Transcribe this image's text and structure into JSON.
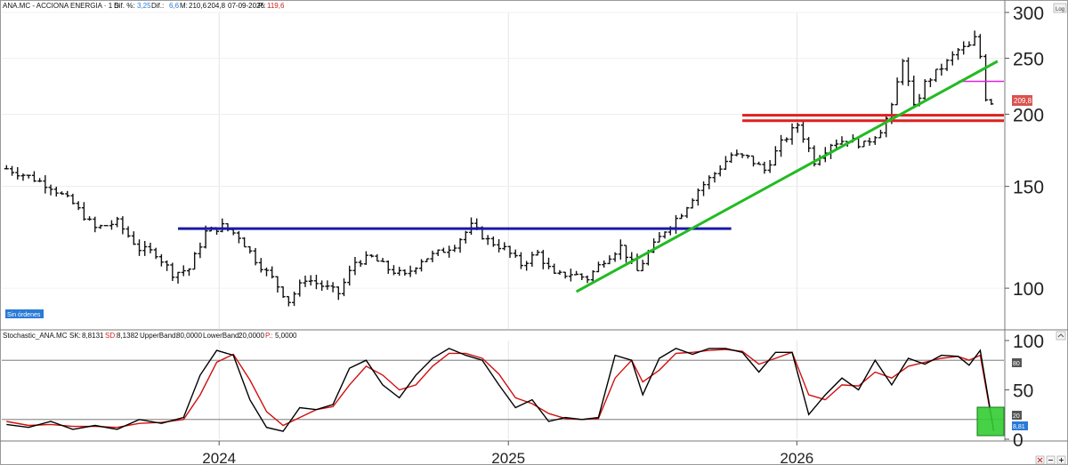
{
  "price_panel": {
    "header": {
      "symbol": "ANA.MC - ACCIONA ENERGIA · 1 S",
      "dif_pct_label": "Dif. %:",
      "dif_pct_value": "3,25",
      "dif_label": "Dif.:",
      "dif_value": "6,6",
      "max_label": "M:",
      "max_value": "210,6",
      "min_value": "204,8",
      "date": "07-09-2026",
      "p_label": "P.:",
      "p_value": "119,6"
    },
    "last_price_badge": "209,8",
    "orders_badge": "Sin órdenes",
    "log_button": "Log",
    "colors": {
      "positive": "#2a7bd6",
      "negative": "#d21f1f",
      "badge": "#d9534f"
    }
  },
  "stoch_panel": {
    "header": {
      "name": "Stochastic_ANA.MC",
      "sk_label": "SK:",
      "sk_value": "8,8131",
      "sd_label": "SD:",
      "sd_value": "8,1382",
      "upper_label": "UpperBand:",
      "upper_value": "80,0000",
      "lower_label": "LowerBand:",
      "lower_value": "20,0000",
      "p_label": "P.:",
      "p_value": "5,0000"
    },
    "badges": {
      "upper": "80",
      "lower": "20",
      "current": "8,81"
    }
  },
  "chart_data": [
    {
      "type": "ohlc",
      "scale": "log",
      "ylim": [
        85,
        300
      ],
      "y_ticks": [
        100,
        150,
        200,
        250,
        300
      ],
      "x_ticks": [
        "2024",
        "2025",
        "2026"
      ],
      "xlim": [
        "2023-04-01",
        "2026-09-20"
      ],
      "grid": true,
      "close_series": [
        [
          "2023-04-07",
          161
        ],
        [
          "2023-05-05",
          156
        ],
        [
          "2023-06-02",
          150
        ],
        [
          "2023-06-30",
          140
        ],
        [
          "2023-07-28",
          127
        ],
        [
          "2023-08-25",
          130
        ],
        [
          "2023-09-22",
          117
        ],
        [
          "2023-10-13",
          115
        ],
        [
          "2023-11-03",
          106
        ],
        [
          "2023-11-24",
          108
        ],
        [
          "2023-12-15",
          125
        ],
        [
          "2024-01-05",
          128
        ],
        [
          "2024-01-26",
          123
        ],
        [
          "2024-02-16",
          112
        ],
        [
          "2024-03-08",
          104
        ],
        [
          "2024-03-29",
          95
        ],
        [
          "2024-04-19",
          104
        ],
        [
          "2024-05-10",
          101
        ],
        [
          "2024-05-31",
          98
        ],
        [
          "2024-06-21",
          111
        ],
        [
          "2024-07-12",
          113
        ],
        [
          "2024-08-02",
          108
        ],
        [
          "2024-08-23",
          105
        ],
        [
          "2024-09-13",
          112
        ],
        [
          "2024-10-04",
          115
        ],
        [
          "2024-10-25",
          119
        ],
        [
          "2024-11-15",
          128
        ],
        [
          "2024-12-06",
          121
        ],
        [
          "2024-12-27",
          117
        ],
        [
          "2025-01-17",
          110
        ],
        [
          "2025-02-07",
          115
        ],
        [
          "2025-02-28",
          105
        ],
        [
          "2025-03-21",
          106
        ],
        [
          "2025-04-11",
          104
        ],
        [
          "2025-05-02",
          112
        ],
        [
          "2025-05-23",
          118
        ],
        [
          "2025-06-13",
          107
        ],
        [
          "2025-06-27",
          115
        ],
        [
          "2025-07-18",
          126
        ],
        [
          "2025-08-08",
          135
        ],
        [
          "2025-08-29",
          148
        ],
        [
          "2025-09-19",
          158
        ],
        [
          "2025-10-10",
          170
        ],
        [
          "2025-10-31",
          168
        ],
        [
          "2025-11-21",
          160
        ],
        [
          "2025-12-12",
          178
        ],
        [
          "2026-01-02",
          192
        ],
        [
          "2026-01-23",
          166
        ],
        [
          "2026-02-13",
          178
        ],
        [
          "2026-03-06",
          181
        ],
        [
          "2026-03-27",
          177
        ],
        [
          "2026-04-17",
          188
        ],
        [
          "2026-05-01",
          205
        ],
        [
          "2026-05-15",
          250
        ],
        [
          "2026-05-29",
          205
        ],
        [
          "2026-06-12",
          226
        ],
        [
          "2026-06-26",
          236
        ],
        [
          "2026-07-10",
          246
        ],
        [
          "2026-07-24",
          258
        ],
        [
          "2026-08-07",
          262
        ],
        [
          "2026-08-14",
          270
        ],
        [
          "2026-08-21",
          252
        ],
        [
          "2026-08-28",
          214
        ],
        [
          "2026-09-04",
          210
        ],
        [
          "2026-09-07",
          209.8
        ]
      ],
      "horizontal_levels": [
        {
          "value": 126.8,
          "from": "2023-11-10",
          "to": "2025-10-10",
          "color": "#1a1aa6"
        },
        {
          "value": 199.2,
          "from": "2025-10-24",
          "to": "2026-09-20",
          "color": "#e02020"
        },
        {
          "value": 194.9,
          "from": "2025-10-24",
          "to": "2026-09-20",
          "color": "#e02020"
        },
        {
          "value": 228.0,
          "from": "2026-07-24",
          "to": "2026-09-20",
          "color": "#e020e0"
        }
      ],
      "trendlines": [
        {
          "from": [
            "2025-03-28",
            98.6
          ],
          "to": [
            "2026-09-12",
            247.0
          ],
          "color": "#22bb22"
        }
      ]
    },
    {
      "type": "line",
      "title": "Stochastic_ANA.MC",
      "ylim": [
        0,
        100
      ],
      "y_ticks": [
        0,
        50,
        100
      ],
      "bands": [
        80,
        20
      ],
      "xlim": [
        "2023-04-01",
        "2026-09-20"
      ],
      "series": [
        {
          "name": "SK",
          "color": "#000000",
          "points": [
            [
              "2023-04-07",
              15
            ],
            [
              "2023-05-05",
              12
            ],
            [
              "2023-06-02",
              18
            ],
            [
              "2023-06-30",
              10
            ],
            [
              "2023-07-28",
              14
            ],
            [
              "2023-08-25",
              10
            ],
            [
              "2023-09-22",
              20
            ],
            [
              "2023-10-20",
              16
            ],
            [
              "2023-11-17",
              22
            ],
            [
              "2023-12-08",
              65
            ],
            [
              "2023-12-29",
              90
            ],
            [
              "2024-01-19",
              85
            ],
            [
              "2024-02-09",
              40
            ],
            [
              "2024-03-01",
              12
            ],
            [
              "2024-03-22",
              8
            ],
            [
              "2024-04-12",
              32
            ],
            [
              "2024-05-03",
              30
            ],
            [
              "2024-05-24",
              35
            ],
            [
              "2024-06-14",
              72
            ],
            [
              "2024-07-05",
              80
            ],
            [
              "2024-07-26",
              55
            ],
            [
              "2024-08-16",
              42
            ],
            [
              "2024-09-06",
              65
            ],
            [
              "2024-09-27",
              82
            ],
            [
              "2024-10-18",
              92
            ],
            [
              "2024-11-08",
              85
            ],
            [
              "2024-11-29",
              80
            ],
            [
              "2024-12-20",
              55
            ],
            [
              "2025-01-10",
              32
            ],
            [
              "2025-01-31",
              40
            ],
            [
              "2025-02-21",
              18
            ],
            [
              "2025-03-14",
              22
            ],
            [
              "2025-04-04",
              20
            ],
            [
              "2025-04-25",
              22
            ],
            [
              "2025-05-16",
              85
            ],
            [
              "2025-06-06",
              80
            ],
            [
              "2025-06-20",
              45
            ],
            [
              "2025-07-11",
              82
            ],
            [
              "2025-08-01",
              92
            ],
            [
              "2025-08-22",
              86
            ],
            [
              "2025-09-12",
              92
            ],
            [
              "2025-10-03",
              92
            ],
            [
              "2025-10-24",
              88
            ],
            [
              "2025-11-14",
              68
            ],
            [
              "2025-12-05",
              88
            ],
            [
              "2025-12-26",
              88
            ],
            [
              "2026-01-16",
              25
            ],
            [
              "2026-02-06",
              45
            ],
            [
              "2026-02-27",
              62
            ],
            [
              "2026-03-20",
              50
            ],
            [
              "2026-04-10",
              80
            ],
            [
              "2026-05-01",
              55
            ],
            [
              "2026-05-22",
              82
            ],
            [
              "2026-06-12",
              76
            ],
            [
              "2026-07-03",
              85
            ],
            [
              "2026-07-24",
              84
            ],
            [
              "2026-08-07",
              75
            ],
            [
              "2026-08-21",
              90
            ],
            [
              "2026-09-07",
              8.81
            ]
          ]
        },
        {
          "name": "SD",
          "color": "#d01010",
          "points": [
            [
              "2023-04-07",
              18
            ],
            [
              "2023-05-05",
              14
            ],
            [
              "2023-06-02",
              15
            ],
            [
              "2023-06-30",
              13
            ],
            [
              "2023-07-28",
              13
            ],
            [
              "2023-08-25",
              12
            ],
            [
              "2023-09-22",
              16
            ],
            [
              "2023-10-20",
              17
            ],
            [
              "2023-11-17",
              20
            ],
            [
              "2023-12-08",
              45
            ],
            [
              "2023-12-29",
              78
            ],
            [
              "2024-01-19",
              86
            ],
            [
              "2024-02-09",
              60
            ],
            [
              "2024-03-01",
              28
            ],
            [
              "2024-03-22",
              14
            ],
            [
              "2024-04-12",
              22
            ],
            [
              "2024-05-03",
              30
            ],
            [
              "2024-05-24",
              33
            ],
            [
              "2024-06-14",
              55
            ],
            [
              "2024-07-05",
              74
            ],
            [
              "2024-07-26",
              65
            ],
            [
              "2024-08-16",
              50
            ],
            [
              "2024-09-06",
              55
            ],
            [
              "2024-09-27",
              74
            ],
            [
              "2024-10-18",
              87
            ],
            [
              "2024-11-08",
              87
            ],
            [
              "2024-11-29",
              82
            ],
            [
              "2024-12-20",
              66
            ],
            [
              "2025-01-10",
              42
            ],
            [
              "2025-01-31",
              36
            ],
            [
              "2025-02-21",
              26
            ],
            [
              "2025-03-14",
              21
            ],
            [
              "2025-04-04",
              20
            ],
            [
              "2025-04-25",
              21
            ],
            [
              "2025-05-16",
              62
            ],
            [
              "2025-06-06",
              80
            ],
            [
              "2025-06-20",
              58
            ],
            [
              "2025-07-11",
              70
            ],
            [
              "2025-08-01",
              87
            ],
            [
              "2025-08-22",
              88
            ],
            [
              "2025-09-12",
              90
            ],
            [
              "2025-10-03",
              91
            ],
            [
              "2025-10-24",
              89
            ],
            [
              "2025-11-14",
              76
            ],
            [
              "2025-12-05",
              82
            ],
            [
              "2025-12-26",
              88
            ],
            [
              "2026-01-16",
              45
            ],
            [
              "2026-02-06",
              40
            ],
            [
              "2026-02-27",
              55
            ],
            [
              "2026-03-20",
              54
            ],
            [
              "2026-04-10",
              68
            ],
            [
              "2026-05-01",
              62
            ],
            [
              "2026-05-22",
              74
            ],
            [
              "2026-06-12",
              78
            ],
            [
              "2026-07-03",
              82
            ],
            [
              "2026-07-24",
              84
            ],
            [
              "2026-08-07",
              80
            ],
            [
              "2026-08-21",
              85
            ],
            [
              "2026-09-07",
              8.14
            ]
          ]
        }
      ]
    }
  ]
}
